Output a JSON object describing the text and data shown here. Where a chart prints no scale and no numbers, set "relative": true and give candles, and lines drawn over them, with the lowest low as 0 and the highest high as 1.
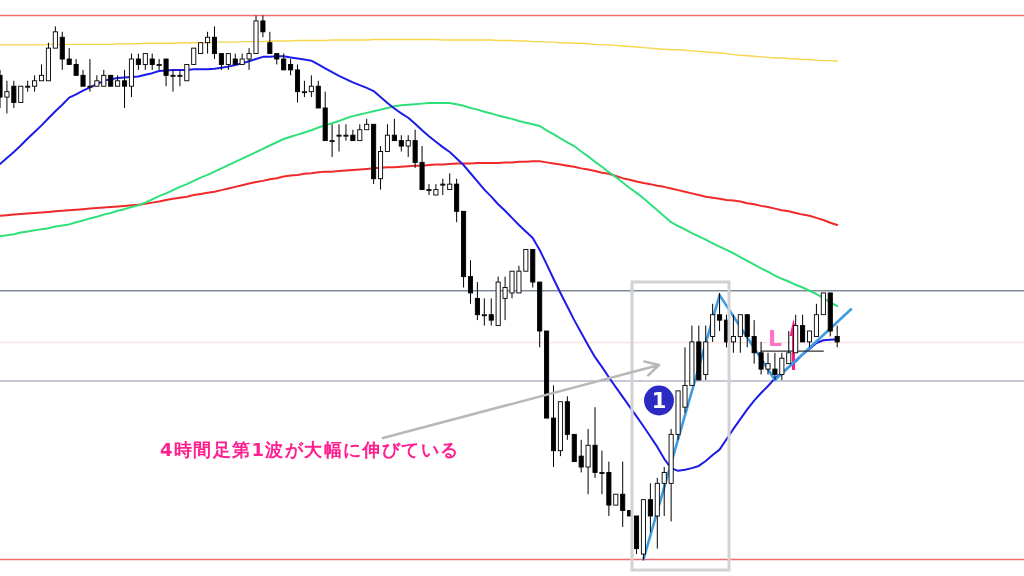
{
  "chart_data": {
    "type": "candlestick",
    "relative": true,
    "tick_labels": false,
    "categories": [
      null,
      null,
      null,
      null,
      null,
      null,
      null,
      null,
      null,
      null,
      null,
      null,
      null,
      null,
      null,
      null,
      null,
      null,
      null,
      null,
      null,
      null,
      null,
      null,
      null,
      null,
      null,
      null,
      null,
      null,
      null,
      null,
      null,
      null,
      null,
      null,
      null,
      null,
      null,
      null,
      null,
      null,
      null,
      null,
      null,
      null,
      null,
      null,
      null,
      null,
      null,
      null,
      null,
      null,
      null,
      null,
      null,
      null,
      null,
      null,
      null,
      null,
      null,
      null,
      null,
      null,
      null,
      null,
      null,
      null,
      null,
      null,
      null,
      null,
      null,
      null,
      null,
      null,
      null,
      null,
      null,
      null,
      null,
      null,
      null,
      null,
      null,
      null,
      null,
      null,
      null,
      null,
      null,
      null,
      null,
      null,
      null,
      null,
      null,
      null,
      null,
      null,
      null,
      null,
      null,
      null,
      null,
      null,
      null,
      null,
      null,
      null,
      null,
      null,
      null,
      null,
      null,
      null,
      null,
      null,
      null,
      null,
      null,
      null,
      null,
      null,
      null,
      null,
      null,
      null,
      null,
      null,
      null,
      null,
      null,
      null,
      null,
      null,
      null,
      null,
      null,
      null,
      null,
      null,
      null,
      null,
      null,
      null,
      null
    ],
    "ohlc": [
      [
        0.89,
        0.9,
        0.83,
        0.85
      ],
      [
        0.85,
        0.88,
        0.82,
        0.86
      ],
      [
        0.87,
        0.88,
        0.83,
        0.84
      ],
      [
        0.84,
        0.87,
        0.84,
        0.87
      ],
      [
        0.87,
        0.88,
        0.86,
        0.87
      ],
      [
        0.87,
        0.89,
        0.86,
        0.88
      ],
      [
        0.88,
        0.91,
        0.88,
        0.89
      ],
      [
        0.88,
        0.95,
        0.88,
        0.94
      ],
      [
        0.94,
        0.98,
        0.94,
        0.97
      ],
      [
        0.96,
        0.97,
        0.9,
        0.92
      ],
      [
        0.92,
        0.94,
        0.91,
        0.91
      ],
      [
        0.91,
        0.92,
        0.89,
        0.89
      ],
      [
        0.89,
        0.9,
        0.87,
        0.87
      ],
      [
        0.87,
        0.92,
        0.86,
        0.87
      ],
      [
        0.87,
        0.89,
        0.87,
        0.88
      ],
      [
        0.87,
        0.9,
        0.87,
        0.89
      ],
      [
        0.89,
        0.89,
        0.87,
        0.87
      ],
      [
        0.87,
        0.89,
        0.87,
        0.88
      ],
      [
        0.88,
        0.9,
        0.83,
        0.87
      ],
      [
        0.87,
        0.93,
        0.85,
        0.92
      ],
      [
        0.92,
        0.93,
        0.9,
        0.91
      ],
      [
        0.91,
        0.93,
        0.9,
        0.93
      ],
      [
        0.92,
        0.93,
        0.9,
        0.91
      ],
      [
        0.91,
        0.92,
        0.9,
        0.91
      ],
      [
        0.92,
        0.92,
        0.87,
        0.89
      ],
      [
        0.89,
        0.9,
        0.86,
        0.89
      ],
      [
        0.89,
        0.9,
        0.87,
        0.89
      ],
      [
        0.88,
        0.91,
        0.88,
        0.91
      ],
      [
        0.91,
        0.94,
        0.91,
        0.94
      ],
      [
        0.93,
        0.95,
        0.93,
        0.95
      ],
      [
        0.95,
        0.97,
        0.93,
        0.96
      ],
      [
        0.96,
        0.98,
        0.92,
        0.93
      ],
      [
        0.93,
        0.93,
        0.9,
        0.91
      ],
      [
        0.91,
        0.93,
        0.9,
        0.93
      ],
      [
        0.92,
        0.93,
        0.91,
        0.91
      ],
      [
        0.91,
        0.93,
        0.91,
        0.92
      ],
      [
        0.92,
        0.94,
        0.9,
        0.93
      ],
      [
        0.93,
        1.0,
        0.93,
        0.99
      ],
      [
        0.99,
        1.0,
        0.96,
        0.97
      ],
      [
        0.95,
        0.97,
        0.93,
        0.93
      ],
      [
        0.93,
        0.93,
        0.91,
        0.92
      ],
      [
        0.92,
        0.93,
        0.9,
        0.9
      ],
      [
        0.91,
        0.92,
        0.89,
        0.9
      ],
      [
        0.9,
        0.91,
        0.84,
        0.86
      ],
      [
        0.86,
        0.88,
        0.85,
        0.86
      ],
      [
        0.86,
        0.89,
        0.85,
        0.87
      ],
      [
        0.87,
        0.88,
        0.83,
        0.83
      ],
      [
        0.83,
        0.86,
        0.77,
        0.77
      ],
      [
        0.77,
        0.8,
        0.74,
        0.77
      ],
      [
        0.78,
        0.8,
        0.75,
        0.78
      ],
      [
        0.78,
        0.8,
        0.77,
        0.78
      ],
      [
        0.78,
        0.79,
        0.77,
        0.77
      ],
      [
        0.77,
        0.8,
        0.77,
        0.79
      ],
      [
        0.79,
        0.81,
        0.79,
        0.8
      ],
      [
        0.8,
        0.8,
        0.69,
        0.7
      ],
      [
        0.7,
        0.76,
        0.68,
        0.75
      ],
      [
        0.75,
        0.8,
        0.75,
        0.78
      ],
      [
        0.78,
        0.81,
        0.77,
        0.77
      ],
      [
        0.77,
        0.78,
        0.75,
        0.76
      ],
      [
        0.76,
        0.78,
        0.74,
        0.77
      ],
      [
        0.77,
        0.79,
        0.72,
        0.73
      ],
      [
        0.73,
        0.76,
        0.68,
        0.68
      ],
      [
        0.68,
        0.69,
        0.67,
        0.68
      ],
      [
        0.67,
        0.69,
        0.67,
        0.68
      ],
      [
        0.69,
        0.7,
        0.67,
        0.69
      ],
      [
        0.68,
        0.71,
        0.68,
        0.69
      ],
      [
        0.69,
        0.7,
        0.62,
        0.64
      ],
      [
        0.64,
        0.64,
        0.5,
        0.52
      ],
      [
        0.52,
        0.55,
        0.47,
        0.49
      ],
      [
        0.48,
        0.51,
        0.44,
        0.45
      ],
      [
        0.45,
        0.48,
        0.43,
        0.45
      ],
      [
        0.45,
        0.48,
        0.43,
        0.44
      ],
      [
        0.43,
        0.52,
        0.43,
        0.51
      ],
      [
        0.48,
        0.52,
        0.44,
        0.5
      ],
      [
        0.49,
        0.53,
        0.48,
        0.53
      ],
      [
        0.49,
        0.54,
        0.49,
        0.53
      ],
      [
        0.53,
        0.57,
        0.53,
        0.57
      ],
      [
        0.57,
        0.57,
        0.5,
        0.51
      ],
      [
        0.51,
        0.51,
        0.39,
        0.42
      ],
      [
        0.42,
        0.42,
        0.26,
        0.26
      ],
      [
        0.26,
        0.32,
        0.17,
        0.2
      ],
      [
        0.2,
        0.29,
        0.19,
        0.29
      ],
      [
        0.29,
        0.3,
        0.22,
        0.23
      ],
      [
        0.23,
        0.23,
        0.18,
        0.18
      ],
      [
        0.19,
        0.22,
        0.16,
        0.17
      ],
      [
        0.17,
        0.24,
        0.12,
        0.21
      ],
      [
        0.21,
        0.28,
        0.15,
        0.16
      ],
      [
        0.16,
        0.2,
        0.12,
        0.16
      ],
      [
        0.16,
        0.18,
        0.08,
        0.1
      ],
      [
        0.1,
        0.12,
        0.1,
        0.12
      ],
      [
        0.12,
        0.18,
        0.06,
        0.09
      ],
      [
        0.09,
        0.09,
        0.08,
        0.08
      ],
      [
        0.08,
        0.08,
        0.01,
        0.02
      ],
      [
        0.01,
        0.11,
        0.0,
        0.11
      ],
      [
        0.11,
        0.14,
        0.05,
        0.08
      ],
      [
        0.08,
        0.15,
        0.02,
        0.14
      ],
      [
        0.14,
        0.17,
        0.08,
        0.16
      ],
      [
        0.14,
        0.24,
        0.07,
        0.23
      ],
      [
        0.23,
        0.31,
        0.22,
        0.31
      ],
      [
        0.28,
        0.39,
        0.27,
        0.32
      ],
      [
        0.32,
        0.43,
        0.32,
        0.4
      ],
      [
        0.4,
        0.43,
        0.33,
        0.33
      ],
      [
        0.34,
        0.43,
        0.33,
        0.4
      ],
      [
        0.41,
        0.47,
        0.4,
        0.45
      ],
      [
        0.45,
        0.49,
        0.42,
        0.44
      ],
      [
        0.44,
        0.45,
        0.39,
        0.4
      ],
      [
        0.4,
        0.45,
        0.38,
        0.41
      ],
      [
        0.41,
        0.45,
        0.38,
        0.45
      ],
      [
        0.45,
        0.45,
        0.39,
        0.41
      ],
      [
        0.41,
        0.44,
        0.36,
        0.38
      ],
      [
        0.38,
        0.4,
        0.34,
        0.35
      ],
      [
        0.35,
        0.38,
        0.34,
        0.36
      ],
      [
        0.35,
        0.38,
        0.33,
        0.34
      ],
      [
        0.34,
        0.38,
        0.33,
        0.37
      ],
      [
        0.36,
        0.42,
        0.36,
        0.38
      ],
      [
        0.38,
        0.45,
        0.38,
        0.43
      ],
      [
        0.43,
        0.45,
        0.4,
        0.4
      ],
      [
        0.4,
        0.42,
        0.39,
        0.42
      ],
      [
        0.41,
        0.47,
        0.41,
        0.45
      ],
      [
        0.45,
        0.49,
        0.45,
        0.49
      ],
      [
        0.49,
        0.49,
        0.41,
        0.42
      ],
      [
        0.41,
        0.43,
        0.39,
        0.4
      ],
      null,
      null,
      null,
      null,
      null,
      null,
      null,
      null,
      null,
      null,
      null,
      null,
      null,
      null,
      null,
      null,
      null,
      null,
      null,
      null,
      null,
      null,
      null,
      null,
      null,
      null,
      null
    ],
    "series": [
      {
        "type": "line",
        "color": "#f5d64c",
        "values": [
          0.946,
          0.946,
          0.946,
          0.946,
          0.946,
          0.946,
          0.946,
          0.947,
          0.947,
          0.947,
          0.947,
          0.947,
          0.947,
          0.947,
          0.947,
          0.947,
          0.947,
          0.948,
          0.948,
          0.948,
          0.948,
          0.949,
          0.949,
          0.949,
          0.949,
          0.949,
          0.95,
          0.95,
          0.95,
          0.95,
          0.95,
          0.951,
          0.951,
          0.951,
          0.951,
          0.952,
          0.952,
          0.952,
          0.952,
          0.953,
          0.953,
          0.953,
          0.953,
          0.954,
          0.954,
          0.954,
          0.954,
          0.954,
          0.955,
          0.955,
          0.955,
          0.955,
          0.955,
          0.955,
          0.956,
          0.956,
          0.956,
          0.956,
          0.956,
          0.956,
          0.956,
          0.956,
          0.956,
          0.956,
          0.955,
          0.955,
          0.955,
          0.955,
          0.955,
          0.955,
          0.955,
          0.955,
          0.954,
          0.954,
          0.954,
          0.953,
          0.953,
          0.952,
          0.952,
          0.951,
          0.951,
          0.95,
          0.95,
          0.949,
          0.949,
          0.948,
          0.947,
          0.946,
          0.946,
          0.945,
          0.944,
          0.943,
          0.942,
          0.941,
          0.94,
          0.939,
          0.938,
          0.937,
          0.937,
          0.936,
          0.935,
          0.934,
          0.933,
          0.932,
          0.931,
          0.93,
          0.928,
          0.927,
          0.926,
          0.925,
          0.924,
          0.923,
          0.922,
          0.922,
          0.921,
          0.92,
          0.919,
          0.919,
          0.918,
          0.917,
          0.917,
          0.916,
          null,
          null,
          null,
          null,
          null,
          null,
          null,
          null,
          null,
          null,
          null,
          null,
          null,
          null,
          null,
          null,
          null,
          null,
          null,
          null,
          null,
          null,
          null,
          null,
          null,
          null,
          null
        ]
      },
      {
        "type": "line",
        "color": "#f02a2a",
        "values": [
          0.632,
          0.633,
          0.634,
          0.635,
          0.636,
          0.637,
          0.638,
          0.639,
          0.64,
          0.641,
          0.642,
          0.643,
          0.644,
          0.645,
          0.646,
          0.647,
          0.648,
          0.649,
          0.65,
          0.651,
          0.652,
          0.654,
          0.656,
          0.658,
          0.661,
          0.663,
          0.665,
          0.667,
          0.67,
          0.672,
          0.674,
          0.676,
          0.679,
          0.682,
          0.685,
          0.688,
          0.691,
          0.694,
          0.696,
          0.699,
          0.701,
          0.704,
          0.706,
          0.707,
          0.709,
          0.71,
          0.712,
          0.713,
          0.713,
          0.714,
          0.715,
          0.716,
          0.717,
          0.718,
          0.719,
          0.72,
          0.721,
          0.721,
          0.722,
          0.723,
          0.724,
          0.724,
          0.725,
          0.726,
          0.726,
          0.727,
          0.728,
          0.728,
          0.728,
          0.729,
          0.729,
          0.729,
          0.729,
          0.73,
          0.73,
          0.731,
          0.731,
          0.732,
          0.732,
          0.73,
          0.728,
          0.726,
          0.724,
          0.722,
          0.719,
          0.717,
          0.714,
          0.711,
          0.709,
          0.705,
          0.701,
          0.698,
          0.695,
          0.692,
          0.69,
          0.687,
          0.685,
          0.682,
          0.679,
          0.676,
          0.673,
          0.67,
          0.667,
          0.665,
          0.663,
          0.661,
          0.66,
          0.658,
          0.655,
          0.653,
          0.65,
          0.648,
          0.645,
          0.642,
          0.64,
          0.637,
          0.634,
          0.632,
          0.628,
          0.624,
          0.619,
          0.615,
          null,
          null,
          null,
          null,
          null,
          null,
          null,
          null,
          null,
          null,
          null,
          null,
          null,
          null,
          null,
          null,
          null,
          null,
          null,
          null,
          null,
          null,
          null,
          null,
          null,
          null,
          null
        ]
      },
      {
        "type": "line",
        "color": "#2fe07a",
        "values": [
          0.594,
          0.596,
          0.598,
          0.601,
          0.603,
          0.605,
          0.607,
          0.609,
          0.612,
          0.614,
          0.616,
          0.62,
          0.623,
          0.627,
          0.63,
          0.634,
          0.637,
          0.641,
          0.644,
          0.648,
          0.651,
          0.656,
          0.662,
          0.668,
          0.673,
          0.679,
          0.685,
          0.69,
          0.696,
          0.702,
          0.707,
          0.713,
          0.719,
          0.725,
          0.731,
          0.737,
          0.743,
          0.749,
          0.755,
          0.761,
          0.767,
          0.773,
          0.777,
          0.781,
          0.785,
          0.789,
          0.794,
          0.798,
          0.802,
          0.806,
          0.811,
          0.815,
          0.818,
          0.821,
          0.824,
          0.827,
          0.83,
          0.833,
          0.835,
          0.836,
          0.837,
          0.838,
          0.839,
          0.839,
          0.839,
          0.839,
          0.837,
          0.834,
          0.83,
          0.827,
          0.823,
          0.82,
          0.816,
          0.813,
          0.81,
          0.806,
          0.803,
          0.8,
          0.797,
          0.789,
          0.782,
          0.774,
          0.767,
          0.76,
          0.75,
          0.741,
          0.731,
          0.722,
          0.712,
          0.703,
          0.693,
          0.683,
          0.674,
          0.664,
          0.653,
          0.642,
          0.631,
          0.62,
          0.613,
          0.607,
          0.6,
          0.594,
          0.588,
          0.581,
          0.575,
          0.569,
          0.563,
          0.556,
          0.549,
          0.542,
          0.535,
          0.529,
          0.522,
          0.516,
          0.511,
          0.505,
          0.5,
          0.494,
          0.488,
          0.481,
          0.472,
          0.466,
          null,
          null,
          null,
          null,
          null,
          null,
          null,
          null,
          null,
          null,
          null,
          null,
          null,
          null,
          null,
          null,
          null,
          null,
          null,
          null,
          null,
          null,
          null,
          null,
          null,
          null,
          null
        ]
      },
      {
        "type": "line",
        "color": "#1c1ce8",
        "values": [
          0.727,
          0.738,
          0.749,
          0.761,
          0.774,
          0.786,
          0.798,
          0.811,
          0.824,
          0.836,
          0.849,
          0.855,
          0.862,
          0.868,
          0.874,
          0.88,
          0.883,
          0.885,
          0.886,
          0.887,
          0.888,
          0.891,
          0.894,
          0.898,
          0.899,
          0.9,
          0.9,
          0.9,
          0.901,
          0.901,
          0.901,
          0.902,
          0.904,
          0.906,
          0.909,
          0.912,
          0.916,
          0.92,
          0.924,
          0.924,
          0.925,
          0.925,
          0.923,
          0.921,
          0.919,
          0.917,
          0.91,
          0.903,
          0.896,
          0.889,
          0.883,
          0.877,
          0.872,
          0.867,
          0.861,
          0.85,
          0.839,
          0.829,
          0.82,
          0.812,
          0.801,
          0.789,
          0.778,
          0.768,
          0.758,
          0.749,
          0.737,
          0.725,
          0.71,
          0.695,
          0.68,
          0.667,
          0.653,
          0.641,
          0.628,
          0.615,
          0.603,
          0.591,
          0.569,
          0.543,
          0.516,
          0.49,
          0.465,
          0.44,
          0.417,
          0.394,
          0.372,
          0.354,
          0.335,
          0.317,
          0.299,
          0.281,
          0.263,
          0.245,
          0.226,
          0.207,
          0.185,
          0.168,
          0.163,
          0.165,
          0.168,
          0.172,
          0.181,
          0.192,
          0.202,
          0.221,
          0.24,
          0.258,
          0.276,
          0.292,
          0.306,
          0.319,
          0.333,
          0.343,
          0.354,
          0.364,
          0.377,
          0.387,
          0.398,
          0.403,
          0.404,
          0.405,
          null,
          null,
          null,
          null,
          null,
          null,
          null,
          null,
          null,
          null,
          null,
          null,
          null,
          null,
          null,
          null,
          null,
          null,
          null,
          null,
          null,
          null,
          null,
          null,
          null,
          null,
          null
        ]
      },
      {
        "type": "line",
        "color": "#3d9be0",
        "values": [
          null,
          null,
          null,
          null,
          null,
          null,
          null,
          null,
          null,
          null,
          null,
          null,
          null,
          null,
          null,
          null,
          null,
          null,
          null,
          null,
          null,
          null,
          null,
          null,
          null,
          null,
          null,
          null,
          null,
          null,
          null,
          null,
          null,
          null,
          null,
          null,
          null,
          null,
          null,
          null,
          null,
          null,
          null,
          null,
          null,
          null,
          null,
          null,
          null,
          null,
          null,
          null,
          null,
          null,
          null,
          null,
          null,
          null,
          null,
          null,
          null,
          null,
          null,
          null,
          null,
          null,
          null,
          null,
          null,
          null,
          null,
          null,
          null,
          null,
          null,
          null,
          null,
          null,
          null,
          null,
          null,
          null,
          null,
          null,
          null,
          null,
          null,
          null,
          null,
          null,
          null,
          null,
          null,
          0.0,
          null,
          null,
          null,
          null,
          null,
          null,
          null,
          null,
          null,
          null,
          0.486,
          null,
          null,
          null,
          null,
          null,
          null,
          null,
          0.33,
          null,
          null,
          null,
          null,
          null,
          null,
          null,
          null,
          null,
          null,
          0.46,
          null,
          null,
          null,
          null,
          null,
          null,
          null,
          null,
          null,
          null,
          null,
          null,
          null,
          null,
          null,
          null,
          null,
          null,
          null,
          null,
          null,
          null,
          null,
          null,
          null
        ]
      },
      {
        "type": "line",
        "color": "#333333",
        "values": [
          null,
          null,
          null,
          null,
          null,
          null,
          null,
          null,
          null,
          null,
          null,
          null,
          null,
          null,
          null,
          null,
          null,
          null,
          null,
          null,
          null,
          null,
          null,
          null,
          null,
          null,
          null,
          null,
          null,
          null,
          null,
          null,
          null,
          null,
          null,
          null,
          null,
          null,
          null,
          null,
          null,
          null,
          null,
          null,
          null,
          null,
          null,
          null,
          null,
          null,
          null,
          null,
          null,
          null,
          null,
          null,
          null,
          null,
          null,
          null,
          null,
          null,
          null,
          null,
          null,
          null,
          null,
          null,
          null,
          null,
          null,
          null,
          null,
          null,
          null,
          null,
          null,
          null,
          null,
          null,
          null,
          null,
          null,
          null,
          null,
          null,
          null,
          null,
          null,
          null,
          null,
          null,
          null,
          null,
          null,
          null,
          null,
          null,
          null,
          null,
          null,
          null,
          null,
          null,
          null,
          null,
          null,
          null,
          null,
          null,
          0.383,
          0.383,
          0.383,
          0.383,
          0.383,
          0.383,
          0.383,
          0.383,
          0.383,
          0.383,
          null,
          null,
          null,
          null,
          null,
          null,
          null,
          null,
          null,
          null,
          null,
          null,
          null,
          null,
          null,
          null,
          null,
          null,
          null,
          null,
          null,
          null,
          null,
          null,
          null,
          null,
          null,
          null,
          null
        ]
      }
    ],
    "ref_lines": [
      {
        "axis": "y",
        "value": 1,
        "color": "#f26b6b"
      },
      {
        "axis": "y",
        "value": 0,
        "color": "#f26b6b"
      },
      {
        "axis": "y",
        "value": 0.494,
        "color": "#7d8a99"
      },
      {
        "axis": "y",
        "value": 0.328,
        "color": "#b3b6c8"
      },
      {
        "axis": "y",
        "value": 0.399,
        "color": "#fbe3e3"
      }
    ],
    "annotations": [
      "4時間足第1波が大幅に伸びている",
      "1",
      "L"
    ]
  }
}
